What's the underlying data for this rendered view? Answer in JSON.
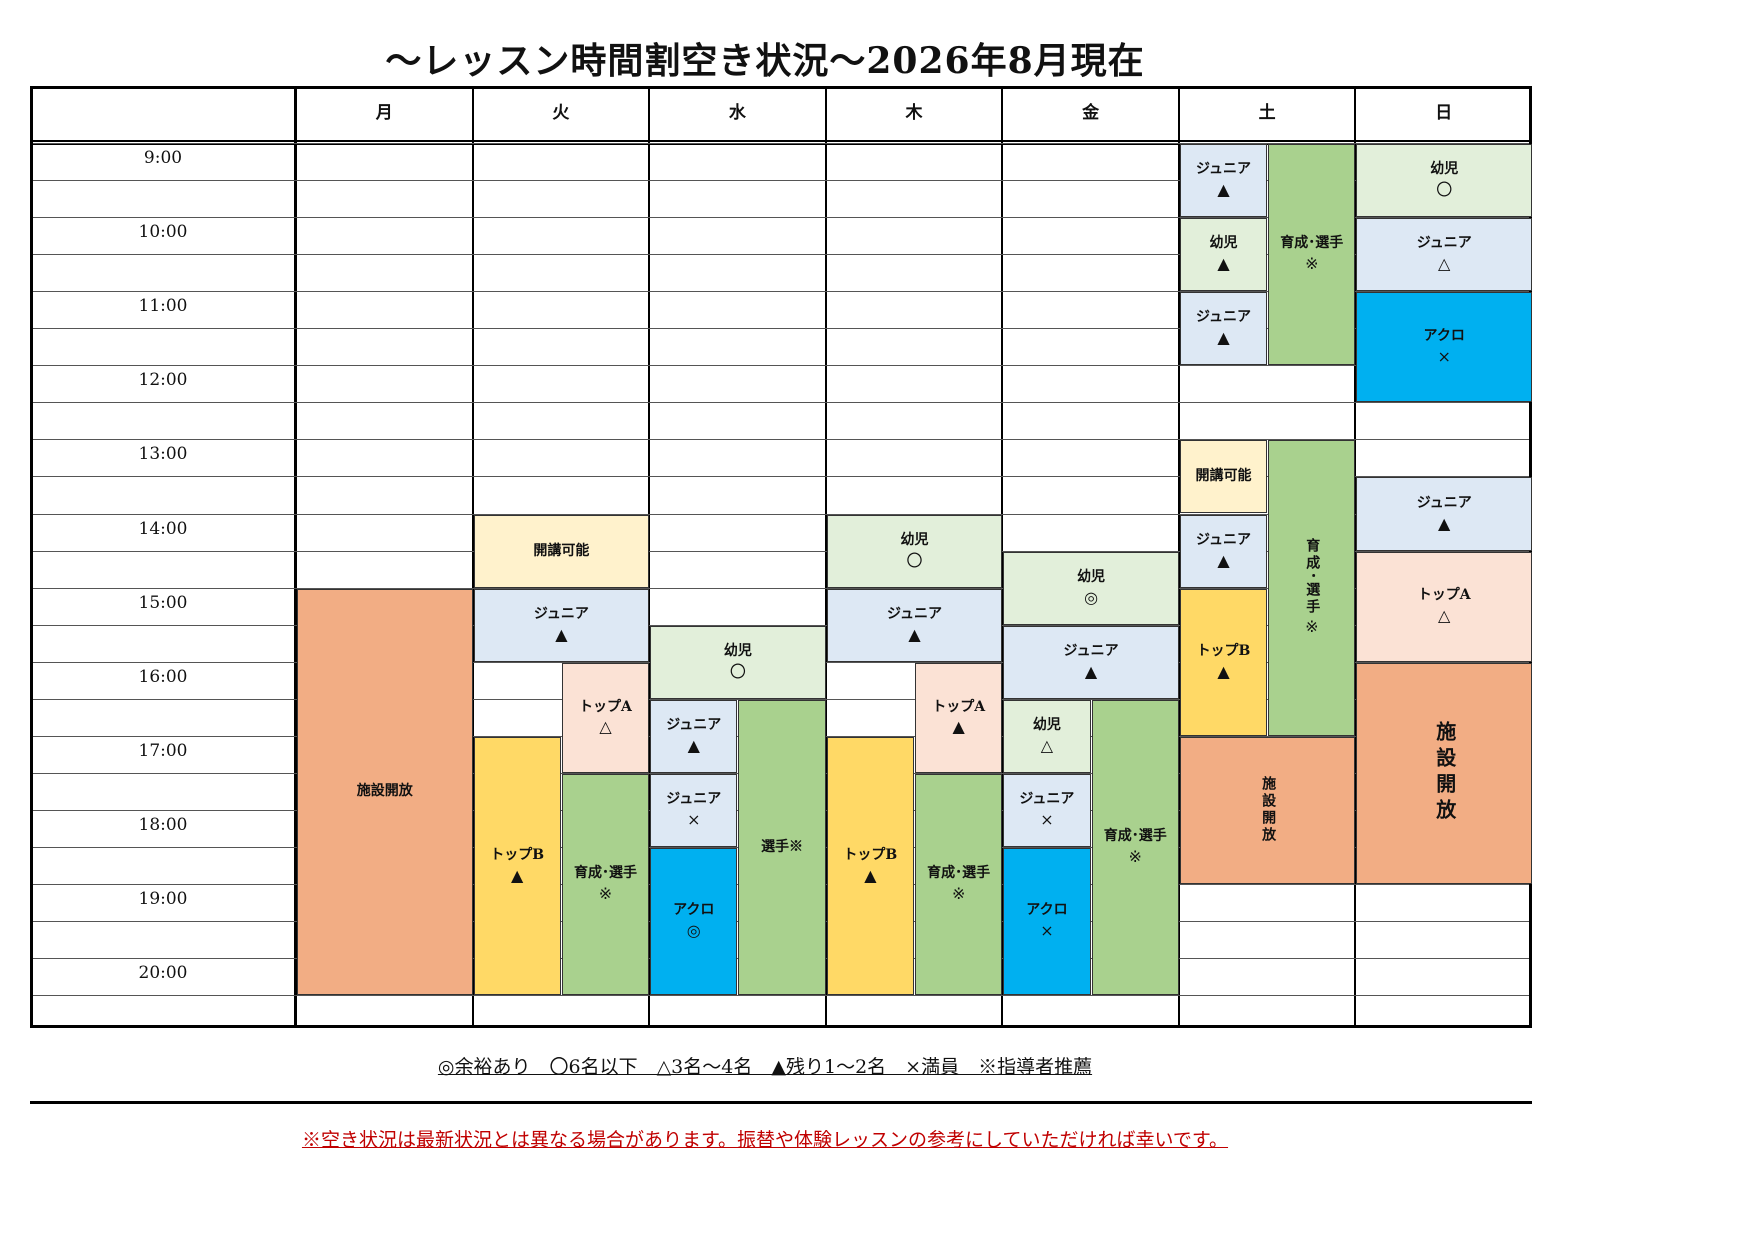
{
  "title": "～レッスン時間割空き状況～2026年8月現在",
  "colors": {
    "orange": "#f2ad84",
    "cream": "#fff2cc",
    "lightblue": "#dde8f4",
    "lightgreen": "#e2efda",
    "peach": "#fbe2d5",
    "yellow": "#ffd966",
    "green": "#a9d18e",
    "cyan": "#00b0f0"
  },
  "days": [
    "月",
    "火",
    "水",
    "木",
    "金",
    "土",
    "日"
  ],
  "times": [
    "9:00",
    "10:00",
    "11:00",
    "12:00",
    "13:00",
    "14:00",
    "15:00",
    "16:00",
    "17:00",
    "18:00",
    "19:00",
    "20:00"
  ],
  "cells": [
    {
      "day": 0,
      "sub": "full",
      "start": 15.0,
      "end": 20.5,
      "name": "施設開放",
      "mark": "",
      "color": "orange"
    },
    {
      "day": 1,
      "sub": "full",
      "start": 14.0,
      "end": 15.0,
      "name": "開講可能",
      "mark": "",
      "color": "cream"
    },
    {
      "day": 1,
      "sub": "full",
      "start": 15.0,
      "end": 16.0,
      "name": "ジュニア",
      "mark": "▲",
      "color": "lightblue"
    },
    {
      "day": 1,
      "sub": "right",
      "start": 16.0,
      "end": 17.5,
      "name": "トップA",
      "mark": "△",
      "color": "peach"
    },
    {
      "day": 1,
      "sub": "left",
      "start": 17.0,
      "end": 20.5,
      "name": "トップB",
      "mark": "▲",
      "color": "yellow"
    },
    {
      "day": 1,
      "sub": "right",
      "start": 17.5,
      "end": 20.5,
      "name": "育成･選手",
      "mark": "※",
      "color": "green"
    },
    {
      "day": 2,
      "sub": "full",
      "start": 15.5,
      "end": 16.5,
      "name": "幼児",
      "mark": "〇",
      "color": "lightgreen"
    },
    {
      "day": 2,
      "sub": "left",
      "start": 16.5,
      "end": 17.5,
      "name": "ジュニア",
      "mark": "▲",
      "color": "lightblue"
    },
    {
      "day": 2,
      "sub": "left",
      "start": 17.5,
      "end": 18.5,
      "name": "ジュニア",
      "mark": "×",
      "color": "lightblue"
    },
    {
      "day": 2,
      "sub": "left",
      "start": 18.5,
      "end": 20.5,
      "name": "アクロ",
      "mark": "◎",
      "color": "cyan"
    },
    {
      "day": 2,
      "sub": "right",
      "start": 16.5,
      "end": 20.5,
      "name": "選手※",
      "mark": "",
      "color": "green"
    },
    {
      "day": 3,
      "sub": "full",
      "start": 14.0,
      "end": 15.0,
      "name": "幼児",
      "mark": "〇",
      "color": "lightgreen"
    },
    {
      "day": 3,
      "sub": "full",
      "start": 15.0,
      "end": 16.0,
      "name": "ジュニア",
      "mark": "▲",
      "color": "lightblue"
    },
    {
      "day": 3,
      "sub": "right",
      "start": 16.0,
      "end": 17.5,
      "name": "トップA",
      "mark": "▲",
      "color": "peach"
    },
    {
      "day": 3,
      "sub": "left",
      "start": 17.0,
      "end": 20.5,
      "name": "トップB",
      "mark": "▲",
      "color": "yellow"
    },
    {
      "day": 3,
      "sub": "right",
      "start": 17.5,
      "end": 20.5,
      "name": "育成･選手",
      "mark": "※",
      "color": "green"
    },
    {
      "day": 4,
      "sub": "full",
      "start": 14.5,
      "end": 15.5,
      "name": "幼児",
      "mark": "◎",
      "color": "lightgreen"
    },
    {
      "day": 4,
      "sub": "full",
      "start": 15.5,
      "end": 16.5,
      "name": "ジュニア",
      "mark": "▲",
      "color": "lightblue"
    },
    {
      "day": 4,
      "sub": "left",
      "start": 16.5,
      "end": 17.5,
      "name": "幼児",
      "mark": "△",
      "color": "lightgreen"
    },
    {
      "day": 4,
      "sub": "left",
      "start": 17.5,
      "end": 18.5,
      "name": "ジュニア",
      "mark": "×",
      "color": "lightblue"
    },
    {
      "day": 4,
      "sub": "left",
      "start": 18.5,
      "end": 20.5,
      "name": "アクロ",
      "mark": "×",
      "color": "cyan"
    },
    {
      "day": 4,
      "sub": "right",
      "start": 16.5,
      "end": 20.5,
      "name": "育成･選手",
      "mark": "※",
      "color": "green"
    },
    {
      "day": 5,
      "sub": "left",
      "start": 9.0,
      "end": 10.0,
      "name": "ジュニア",
      "mark": "▲",
      "color": "lightblue"
    },
    {
      "day": 5,
      "sub": "left",
      "start": 10.0,
      "end": 11.0,
      "name": "幼児",
      "mark": "▲",
      "color": "lightgreen"
    },
    {
      "day": 5,
      "sub": "left",
      "start": 11.0,
      "end": 12.0,
      "name": "ジュニア",
      "mark": "▲",
      "color": "lightblue"
    },
    {
      "day": 5,
      "sub": "right",
      "start": 9.0,
      "end": 12.0,
      "name": "育成･選手",
      "mark": "※",
      "color": "green"
    },
    {
      "day": 5,
      "sub": "left",
      "start": 13.0,
      "end": 14.0,
      "name": "開講可能",
      "mark": "",
      "color": "cream"
    },
    {
      "day": 5,
      "sub": "left",
      "start": 14.0,
      "end": 15.0,
      "name": "ジュニア",
      "mark": "▲",
      "color": "lightblue"
    },
    {
      "day": 5,
      "sub": "left",
      "start": 15.0,
      "end": 17.0,
      "name": "トップB",
      "mark": "▲",
      "color": "yellow"
    },
    {
      "day": 5,
      "sub": "right",
      "start": 13.0,
      "end": 17.0,
      "name": "育成･選手",
      "mark": "※",
      "color": "green",
      "vertical": "small"
    },
    {
      "day": 5,
      "sub": "full",
      "start": 17.0,
      "end": 19.0,
      "name": "施設開放",
      "mark": "",
      "color": "orange",
      "vertical": "small"
    },
    {
      "day": 6,
      "sub": "full",
      "start": 9.0,
      "end": 10.0,
      "name": "幼児",
      "mark": "〇",
      "color": "lightgreen"
    },
    {
      "day": 6,
      "sub": "full",
      "start": 10.0,
      "end": 11.0,
      "name": "ジュニア",
      "mark": "△",
      "color": "lightblue"
    },
    {
      "day": 6,
      "sub": "full",
      "start": 11.0,
      "end": 12.5,
      "name": "アクロ",
      "mark": "×",
      "color": "cyan"
    },
    {
      "day": 6,
      "sub": "full",
      "start": 13.5,
      "end": 14.5,
      "name": "ジュニア",
      "mark": "▲",
      "color": "lightblue"
    },
    {
      "day": 6,
      "sub": "full",
      "start": 14.5,
      "end": 16.0,
      "name": "トップA",
      "mark": "△",
      "color": "peach"
    },
    {
      "day": 6,
      "sub": "full",
      "start": 16.0,
      "end": 19.0,
      "name": "施設開放",
      "mark": "",
      "color": "orange",
      "vertical": "big"
    }
  ],
  "legend": "◎余裕あり　〇6名以下　△3名～4名　▲残り1～2名　×満員　※指導者推薦",
  "note": "※空き状況は最新状況とは異なる場合があります。振替や体験レッスンの参考にしていただければ幸いです。"
}
